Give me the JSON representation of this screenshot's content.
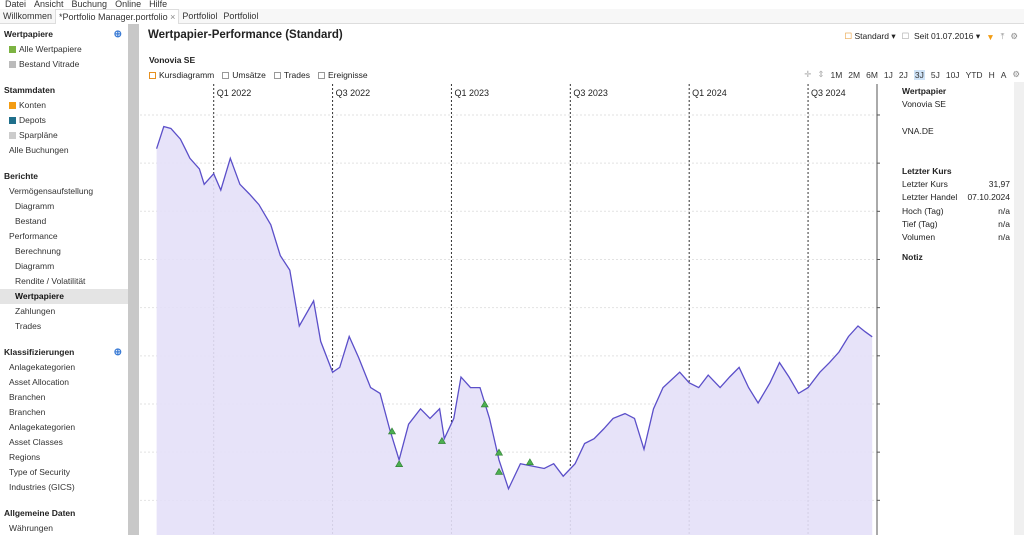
{
  "menu": [
    "Datei",
    "Ansicht",
    "Buchung",
    "Online",
    "Hilfe"
  ],
  "tabs": [
    "Willkommen",
    "*Portfolio Manager.portfolio",
    "Portfoliol",
    "Portfoliol"
  ],
  "sidebar": {
    "wertpapiere": {
      "title": "Wertpapiere",
      "items": [
        "Alle Wertpapiere",
        "Bestand Vitrade"
      ]
    },
    "stammdaten": {
      "title": "Stammdaten",
      "items": [
        "Konten",
        "Depots",
        "Sparpläne",
        "Alle Buchungen"
      ]
    },
    "berichte": {
      "title": "Berichte",
      "items": [
        "Vermögensaufstellung",
        "Diagramm",
        "Bestand",
        "Performance",
        "Berechnung",
        "Diagramm",
        "Rendite / Volatilität",
        "Wertpapiere",
        "Zahlungen",
        "Trades"
      ]
    },
    "klassifizierungen": {
      "title": "Klassifizierungen",
      "items": [
        "Anlagekategorien",
        "Asset Allocation",
        "Branchen",
        "Branchen",
        "Anlagekategorien",
        "Asset Classes",
        "Regions",
        "Type of Security",
        "Industries (GICS)"
      ]
    },
    "allgemein": {
      "title": "Allgemeine Daten",
      "items": [
        "Währungen"
      ]
    }
  },
  "main": {
    "title": "Wertpapier-Performance (Standard)",
    "view": "Standard",
    "since": "Seit 01.07.2016",
    "security": "Vonovia SE",
    "checks": [
      "Kursdiagramm",
      "Umsätze",
      "Trades",
      "Ereignisse"
    ],
    "periods": [
      "1M",
      "2M",
      "6M",
      "1J",
      "2J",
      "3J",
      "5J",
      "10J",
      "YTD",
      "H",
      "A"
    ],
    "active_period": "3J"
  },
  "info": {
    "h1": "Wertpapier",
    "name": "Vonovia SE",
    "ticker": "VNA.DE",
    "h2": "Letzter Kurs",
    "rows": [
      [
        "Letzter Kurs",
        "31,97"
      ],
      [
        "Letzter Handel",
        "07.10.2024"
      ],
      [
        "Hoch (Tag)",
        "n/a"
      ],
      [
        "Tief (Tag)",
        "n/a"
      ],
      [
        "Volumen",
        "n/a"
      ]
    ],
    "h3": "Notiz"
  },
  "colors": {
    "line": "#5b4fc9",
    "fill": "#e4e0f8",
    "marker": "#4caf50"
  },
  "chart_data": {
    "type": "area",
    "xlim": [
      2021.69,
      2024.79
    ],
    "ylim": [
      11.4,
      57.8
    ],
    "quarters": [
      {
        "x": 2022.0,
        "label": "Q1 2022"
      },
      {
        "x": 2022.5,
        "label": "Q3 2022"
      },
      {
        "x": 2023.0,
        "label": "Q1 2023"
      },
      {
        "x": 2023.5,
        "label": "Q3 2023"
      },
      {
        "x": 2024.0,
        "label": "Q1 2024"
      },
      {
        "x": 2024.5,
        "label": "Q3 2024"
      }
    ],
    "yticks": [
      15,
      20,
      25,
      30,
      35,
      40,
      45,
      50,
      55
    ],
    "x": [
      2021.76,
      2021.79,
      2021.82,
      2021.86,
      2021.88,
      2021.9,
      2021.94,
      2021.96,
      2022.0,
      2022.03,
      2022.07,
      2022.11,
      2022.15,
      2022.19,
      2022.24,
      2022.28,
      2022.32,
      2022.36,
      2022.42,
      2022.45,
      2022.5,
      2022.53,
      2022.57,
      2022.61,
      2022.66,
      2022.7,
      2022.74,
      2022.78,
      2022.82,
      2022.87,
      2022.91,
      2022.95,
      2022.97,
      2023.01,
      2023.04,
      2023.08,
      2023.12,
      2023.16,
      2023.2,
      2023.24,
      2023.29,
      2023.33,
      2023.39,
      2023.43,
      2023.47,
      2023.52,
      2023.56,
      2023.6,
      2023.64,
      2023.68,
      2023.73,
      2023.77,
      2023.81,
      2023.85,
      2023.89,
      2023.96,
      2024.0,
      2024.04,
      2024.08,
      2024.13,
      2024.17,
      2024.21,
      2024.25,
      2024.29,
      2024.34,
      2024.38,
      2024.42,
      2024.46,
      2024.5,
      2024.55,
      2024.59,
      2024.63,
      2024.67,
      2024.71,
      2024.74,
      2024.77
    ],
    "y": [
      51.5,
      53.8,
      53.6,
      52.5,
      51.5,
      50.5,
      49.4,
      47.8,
      48.9,
      47.2,
      50.5,
      47.8,
      46.8,
      45.7,
      43.6,
      40.4,
      38.9,
      33.1,
      35.7,
      31.5,
      28.3,
      28.8,
      32.0,
      29.8,
      26.7,
      26.1,
      22.4,
      19.2,
      22.9,
      24.5,
      23.5,
      24.5,
      21.4,
      23.5,
      27.8,
      26.7,
      26.7,
      23.5,
      19.2,
      16.2,
      18.8,
      18.6,
      18.3,
      18.8,
      17.5,
      18.8,
      20.9,
      21.4,
      22.4,
      23.5,
      24.0,
      23.5,
      20.3,
      24.5,
      26.7,
      28.3,
      27.2,
      26.7,
      28.0,
      26.7,
      27.8,
      28.8,
      26.7,
      25.1,
      27.2,
      29.3,
      27.8,
      26.1,
      26.7,
      28.3,
      29.3,
      30.4,
      32.0,
      33.1,
      32.5,
      31.97
    ],
    "markers": [
      [
        2022.75,
        22.2
      ],
      [
        2022.78,
        18.8
      ],
      [
        2022.96,
        21.2
      ],
      [
        2023.14,
        25.0
      ],
      [
        2023.2,
        20.0
      ],
      [
        2023.2,
        18.0
      ],
      [
        2023.33,
        19.0
      ]
    ]
  }
}
